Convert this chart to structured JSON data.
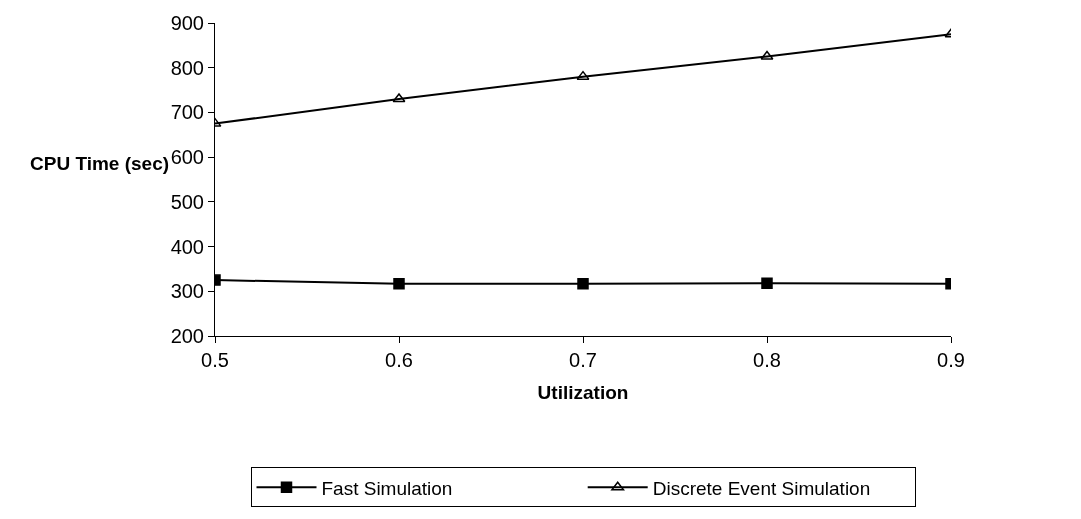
{
  "chart_data": {
    "type": "line",
    "xlabel": "Utilization",
    "ylabel": "CPU Time (sec)",
    "x": [
      0.5,
      0.6,
      0.7,
      0.8,
      0.9
    ],
    "series": [
      {
        "name": "Fast Simulation",
        "color": "#000000",
        "marker": "square",
        "values": [
          325,
          317,
          317,
          318,
          317
        ]
      },
      {
        "name": "Discrete Event Simulation",
        "color": "#000000",
        "marker": "triangle",
        "values": [
          675,
          730,
          780,
          825,
          875
        ]
      }
    ],
    "xlim": [
      0.5,
      0.9
    ],
    "xticks": [
      0.5,
      0.6,
      0.7,
      0.8,
      0.9
    ],
    "ylim": [
      200,
      900
    ],
    "yticks": [
      200,
      300,
      400,
      500,
      600,
      700,
      800,
      900
    ],
    "grid": false,
    "legend": "bottom",
    "line_style": "solid"
  }
}
